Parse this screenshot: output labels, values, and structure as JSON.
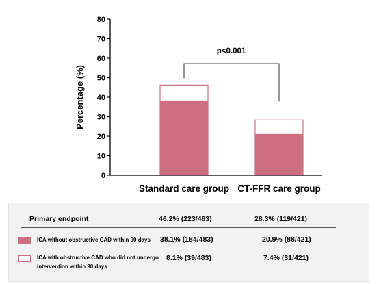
{
  "chart_data": {
    "type": "bar",
    "stacked": true,
    "categories": [
      "Standard care group",
      "CT-FFR care group"
    ],
    "series": [
      {
        "name": "ICA without obstructive CAD within 90 days",
        "values": [
          38.1,
          20.9
        ],
        "color": "#cd6f80"
      },
      {
        "name": "ICA with obstructive CAD who did not undergo intervention within 90 days",
        "values": [
          8.1,
          7.4
        ],
        "color": "#ffffff"
      }
    ],
    "ylabel": "Percentage (%)",
    "ylim": [
      0,
      80
    ],
    "yticks": [
      "0",
      "10",
      "20",
      "30",
      "40",
      "50",
      "60",
      "70",
      "80"
    ],
    "annotation": "p<0.001",
    "grid": false,
    "bar_stroke_color": "#cd6f80"
  },
  "table": {
    "header": {
      "label": "Primary endpoint",
      "values": [
        "46.2% (223/483)",
        "28.3% (119/421)"
      ]
    },
    "rows": [
      {
        "label_lines": [
          "ICA without obstructive CAD within 90 days"
        ],
        "values": [
          "38.1% (184/483)",
          "20.9% (88/421)"
        ]
      },
      {
        "label_lines": [
          "ICA with obstructive CAD who did not undergo",
          "intervention within 90 days"
        ],
        "values": [
          "8.1% (39/483)",
          "7.4% (31/421)"
        ]
      }
    ]
  }
}
